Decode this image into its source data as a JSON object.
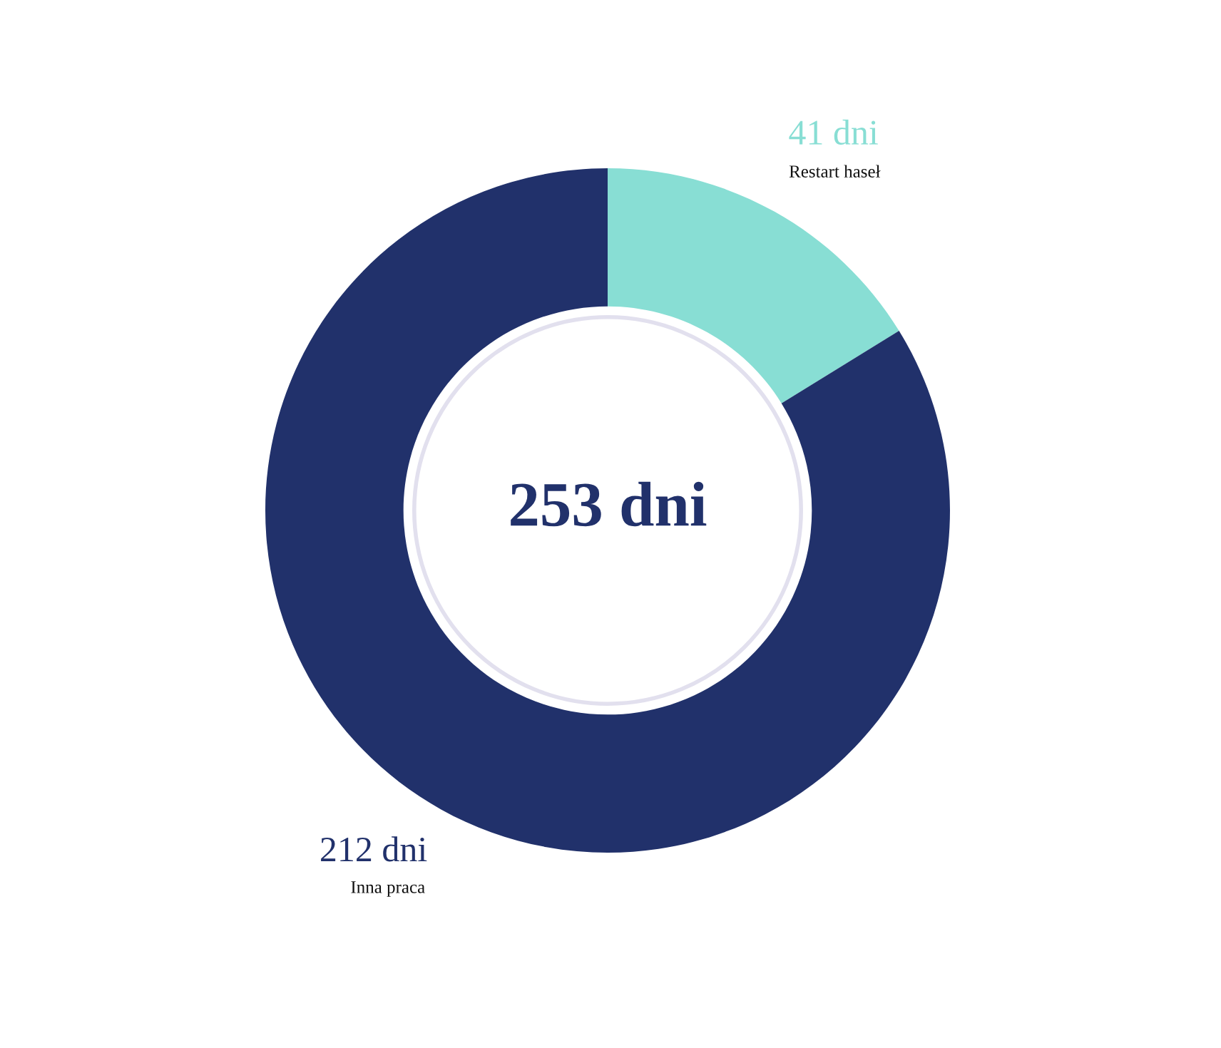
{
  "chart_data": {
    "type": "donut",
    "categories": [
      "Restart haseł",
      "Inna praca"
    ],
    "values": [
      41,
      212
    ],
    "colors": [
      "#88ded4",
      "#21316b"
    ],
    "value_labels": [
      "41 dni",
      "212 dni"
    ],
    "annotations": [
      "253 dni"
    ]
  }
}
